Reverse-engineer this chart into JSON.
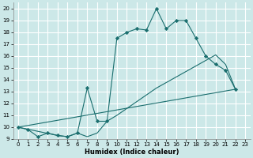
{
  "xlabel": "Humidex (Indice chaleur)",
  "bg_color": "#cce8e8",
  "grid_color": "#ffffff",
  "line_color": "#1a6e6e",
  "xlim": [
    -0.5,
    23.5
  ],
  "ylim": [
    9,
    20.5
  ],
  "xticks": [
    0,
    1,
    2,
    3,
    4,
    5,
    6,
    7,
    8,
    9,
    10,
    11,
    12,
    13,
    14,
    15,
    16,
    17,
    18,
    19,
    20,
    21,
    22,
    23
  ],
  "yticks": [
    9,
    10,
    11,
    12,
    13,
    14,
    15,
    16,
    17,
    18,
    19,
    20
  ],
  "line1_x": [
    0,
    1,
    2,
    3,
    4,
    5,
    6,
    7,
    8,
    9,
    10,
    11,
    12,
    13,
    14,
    15,
    16,
    17,
    18,
    19,
    20,
    21,
    22
  ],
  "line1_y": [
    10.0,
    9.8,
    9.2,
    9.5,
    9.3,
    9.2,
    9.5,
    13.3,
    10.5,
    10.5,
    17.5,
    18.0,
    18.3,
    18.2,
    20.0,
    18.3,
    19.0,
    19.0,
    17.5,
    16.0,
    15.3,
    14.8,
    13.2
  ],
  "line2_x": [
    0,
    22
  ],
  "line2_y": [
    10.0,
    13.2
  ],
  "line3_x": [
    0,
    4,
    5,
    6,
    7,
    8,
    9,
    10,
    14,
    20,
    21,
    22
  ],
  "line3_y": [
    10.0,
    9.3,
    9.2,
    9.5,
    9.2,
    9.5,
    10.5,
    11.0,
    13.3,
    16.1,
    15.3,
    13.2
  ],
  "xlabel_fontsize": 6.0,
  "tick_fontsize": 5.0
}
